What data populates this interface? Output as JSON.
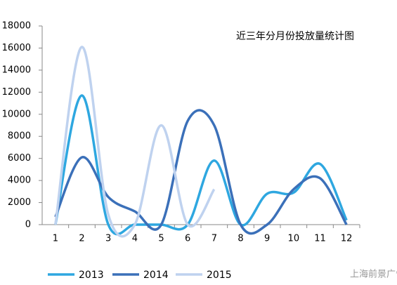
{
  "chart_data": {
    "type": "line",
    "title": "近三年分月份投放量统计图",
    "categories": [
      "1",
      "2",
      "3",
      "4",
      "5",
      "6",
      "7",
      "8",
      "9",
      "10",
      "11",
      "12"
    ],
    "series": [
      {
        "name": "2013",
        "color": "#2ea7e0",
        "values": [
          0,
          11700,
          0,
          0,
          0,
          0,
          5800,
          0,
          2800,
          2900,
          5500,
          400
        ]
      },
      {
        "name": "2014",
        "color": "#3b70b9",
        "values": [
          700,
          6100,
          2500,
          1200,
          0,
          9400,
          9000,
          0,
          0,
          3200,
          4200,
          0
        ]
      },
      {
        "name": "2015",
        "color": "#bfd2ef",
        "values": [
          0,
          16100,
          900,
          0,
          9000,
          0,
          3200,
          null,
          null,
          null,
          null,
          null
        ]
      }
    ],
    "ylim": [
      0,
      18000
    ],
    "yticks": [
      0,
      2000,
      4000,
      6000,
      8000,
      10000,
      12000,
      14000,
      16000,
      18000
    ],
    "smooth": true,
    "grid": false,
    "legend": "bottom",
    "annotations": [
      "上海前景广告"
    ]
  }
}
